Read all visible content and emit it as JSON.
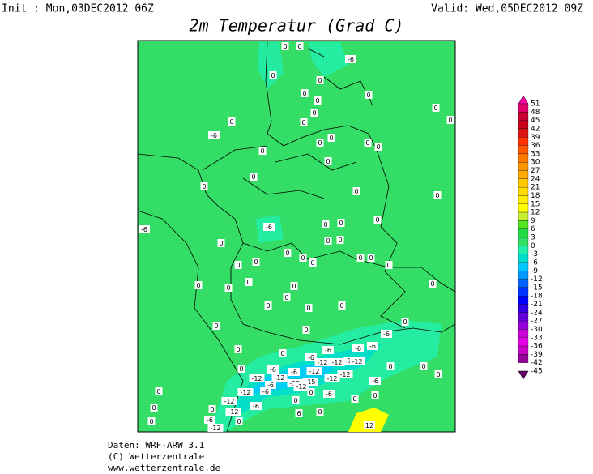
{
  "header": {
    "init": "Init : Mon,03DEC2012 06Z",
    "valid": "Valid: Wed,05DEC2012 09Z",
    "title": "2m Temperatur (Grad C)"
  },
  "colorbar": {
    "labels": [
      51,
      48,
      45,
      42,
      39,
      36,
      33,
      30,
      27,
      24,
      21,
      18,
      15,
      12,
      9,
      6,
      3,
      0,
      -3,
      -6,
      -9,
      -12,
      -15,
      -18,
      -21,
      -24,
      -27,
      -30,
      -33,
      -36,
      -39,
      -42,
      -45
    ],
    "colors": [
      "#ff00aa",
      "#e0006e",
      "#c80032",
      "#c8001e",
      "#dc1414",
      "#ff3200",
      "#ff5a00",
      "#ff7800",
      "#ff9600",
      "#ffaa00",
      "#ffc800",
      "#ffdc00",
      "#ffee00",
      "#ffff00",
      "#c8f032",
      "#55e622",
      "#22dd44",
      "#33dd66",
      "#22eeaa",
      "#00ddcc",
      "#00c8ff",
      "#0096ff",
      "#0064ff",
      "#0032ff",
      "#0000ff",
      "#3200e6",
      "#6400dc",
      "#9600dc",
      "#c800dc",
      "#e600e6",
      "#c800c8",
      "#960096",
      "#640064"
    ]
  },
  "map": {
    "background": "#33dd66",
    "contour_labels": [
      0,
      0,
      -6,
      0,
      0,
      0,
      0,
      0,
      0,
      0,
      0,
      0,
      0,
      -6,
      0,
      0,
      0,
      0,
      0,
      0,
      0,
      0,
      0,
      0,
      -6,
      0,
      0,
      0,
      -6,
      0,
      0,
      0,
      0,
      0,
      0,
      0,
      0,
      0,
      0,
      0,
      0,
      0,
      0,
      0,
      0,
      0,
      0,
      0,
      0,
      0,
      0,
      -6,
      0,
      -6,
      -6,
      0,
      0,
      -6,
      -6,
      -12,
      -12,
      -1,
      -12,
      -6,
      -6,
      -12,
      -12,
      0,
      0,
      -12,
      -12,
      -12,
      -15,
      -12,
      -6,
      -12,
      0,
      -6,
      0,
      -12,
      -6,
      0,
      -6,
      0,
      0,
      0,
      -12,
      -12,
      -6,
      0,
      0,
      0,
      -6,
      -12,
      0,
      6,
      12,
      0,
      0
    ]
  },
  "footer": {
    "lines": [
      "Daten: WRF-ARW 3.1",
      "(C) Wetterzentrale",
      "www.wetterzentrale.de"
    ]
  }
}
